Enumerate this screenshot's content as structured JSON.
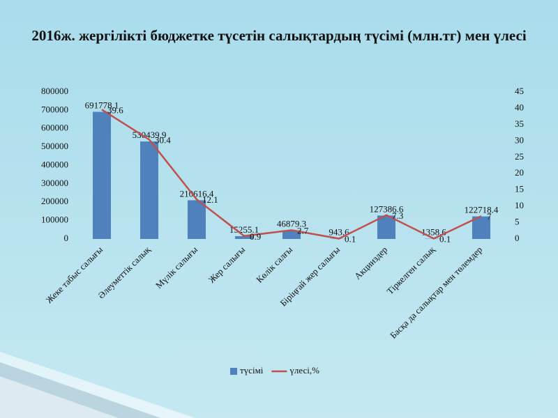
{
  "chart_data": {
    "type": "bar-line",
    "title": "2016ж. жергілікті бюджетке түсетін салықтардың түсімі (млн.тг) мен үлесі",
    "categories": [
      "Жеке табыс салығы",
      "Әлеуметтік салық",
      "Мүлік салығы",
      "Жер салығы",
      "Көлік салғы",
      "Біріңғай жер салығы",
      "Акцииздер",
      "Тіркелген салық",
      "Басқа да салықтар мен төлемдер"
    ],
    "series": [
      {
        "name": "түсімі",
        "color": "#4f81bd",
        "values": [
          691778.1,
          530439.9,
          210616.4,
          15255.1,
          46879.3,
          943.6,
          127386.6,
          1358.6,
          122718.4
        ]
      },
      {
        "name": "үлесі,%",
        "color": "#c0504d",
        "axis": "y2",
        "values": [
          39.6,
          30.4,
          12.1,
          0.9,
          2.7,
          0.1,
          7.3,
          0.1,
          7
        ]
      }
    ],
    "ylim": [
      0,
      800000
    ],
    "yticks": [
      0,
      100000,
      200000,
      300000,
      400000,
      500000,
      600000,
      700000,
      800000
    ],
    "y2lim": [
      0,
      45
    ],
    "y2ticks": [
      0,
      5,
      10,
      15,
      20,
      25,
      30,
      35,
      40,
      45
    ],
    "legend": "bottom"
  }
}
